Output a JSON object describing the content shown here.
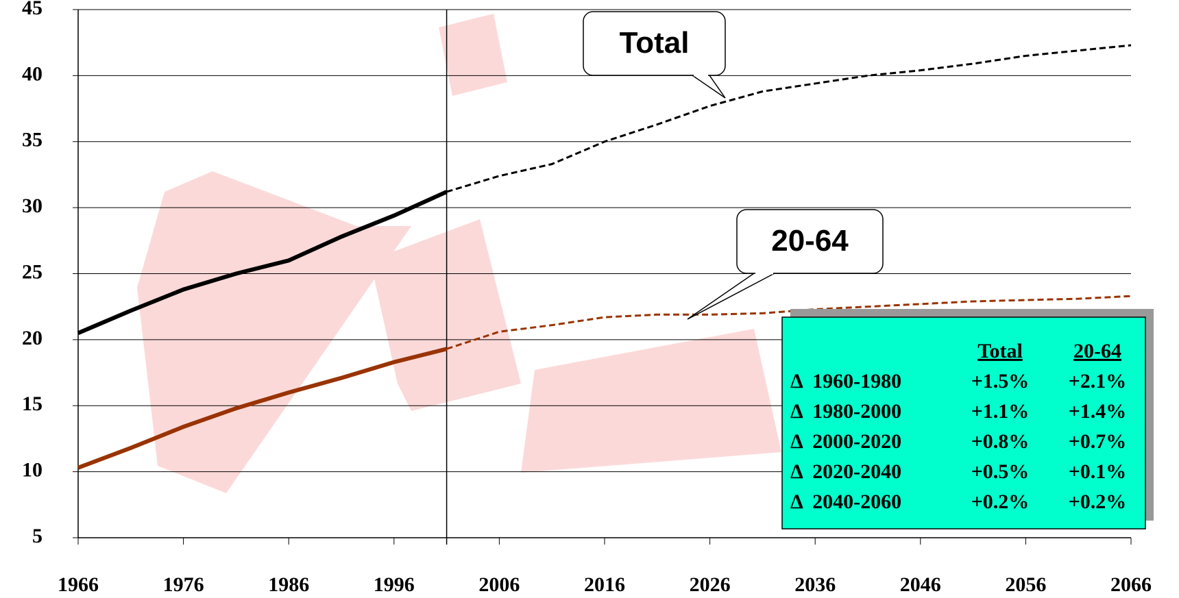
{
  "chart_data": {
    "type": "line",
    "x": [
      1966,
      1971,
      1976,
      1981,
      1986,
      1991,
      1996,
      2001,
      2006,
      2011,
      2016,
      2021,
      2026,
      2031,
      2036,
      2041,
      2046,
      2051,
      2056,
      2061,
      2066
    ],
    "series": [
      {
        "name": "Total",
        "color": "#000000",
        "values": [
          20.5,
          22.2,
          23.8,
          25.0,
          26.0,
          27.8,
          29.4,
          31.2,
          32.4,
          33.3,
          35.0,
          36.3,
          37.7,
          38.8,
          39.4,
          40.0,
          40.4,
          40.9,
          41.5,
          41.9,
          42.3
        ]
      },
      {
        "name": "20-64",
        "color": "#993300",
        "values": [
          10.3,
          11.8,
          13.4,
          14.8,
          16.0,
          17.1,
          18.3,
          19.3,
          20.6,
          21.1,
          21.7,
          21.9,
          21.9,
          22.0,
          22.3,
          22.5,
          22.7,
          22.9,
          23.0,
          23.1,
          23.3
        ]
      }
    ],
    "projection_start": 2001,
    "xlim": [
      1966,
      2066
    ],
    "xticks": [
      1966,
      1976,
      1986,
      1996,
      2006,
      2016,
      2026,
      2036,
      2046,
      2056,
      2066
    ],
    "ylim": [
      5,
      45
    ],
    "yticks": [
      5,
      10,
      15,
      20,
      25,
      30,
      35,
      40,
      45
    ],
    "grid": true,
    "table": {
      "headers": [
        "Total",
        "20-64"
      ],
      "rows": [
        [
          "Δ  1960-1980",
          "+1.5%",
          "+2.1%"
        ],
        [
          "Δ  1980-2000",
          "+1.1%",
          "+1.4%"
        ],
        [
          "Δ  2000-2020",
          "+0.8%",
          "+0.7%"
        ],
        [
          "Δ  2020-2040",
          "+0.5%",
          "+0.1%"
        ],
        [
          "Δ  2040-2060",
          "+0.2%",
          "+0.2%"
        ]
      ],
      "color": "#00ffcc"
    }
  }
}
